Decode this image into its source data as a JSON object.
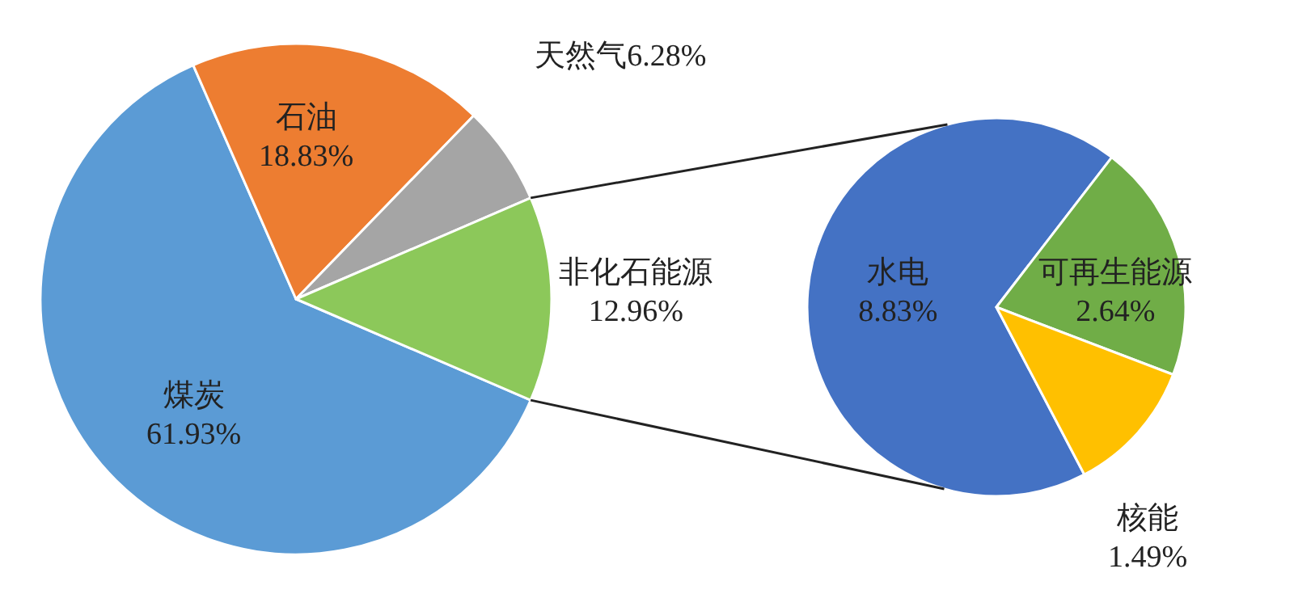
{
  "chart_data": [
    {
      "type": "pie",
      "categories": [
        "煤炭",
        "石油",
        "天然气",
        "非化石能源"
      ],
      "values": [
        61.93,
        18.83,
        6.28,
        12.96
      ],
      "colors": [
        "#5b9bd5",
        "#ed7d31",
        "#a5a5a5",
        "#8cc85a"
      ],
      "value_labels": [
        "61.93%",
        "18.83%",
        "6.28%",
        "12.96%"
      ]
    },
    {
      "type": "pie",
      "categories": [
        "水电",
        "可再生能源",
        "核能"
      ],
      "values": [
        8.83,
        2.64,
        1.49
      ],
      "colors": [
        "#4472c4",
        "#70ad47",
        "#ffc000"
      ],
      "value_labels": [
        "8.83%",
        "2.64%",
        "1.49%"
      ]
    }
  ]
}
